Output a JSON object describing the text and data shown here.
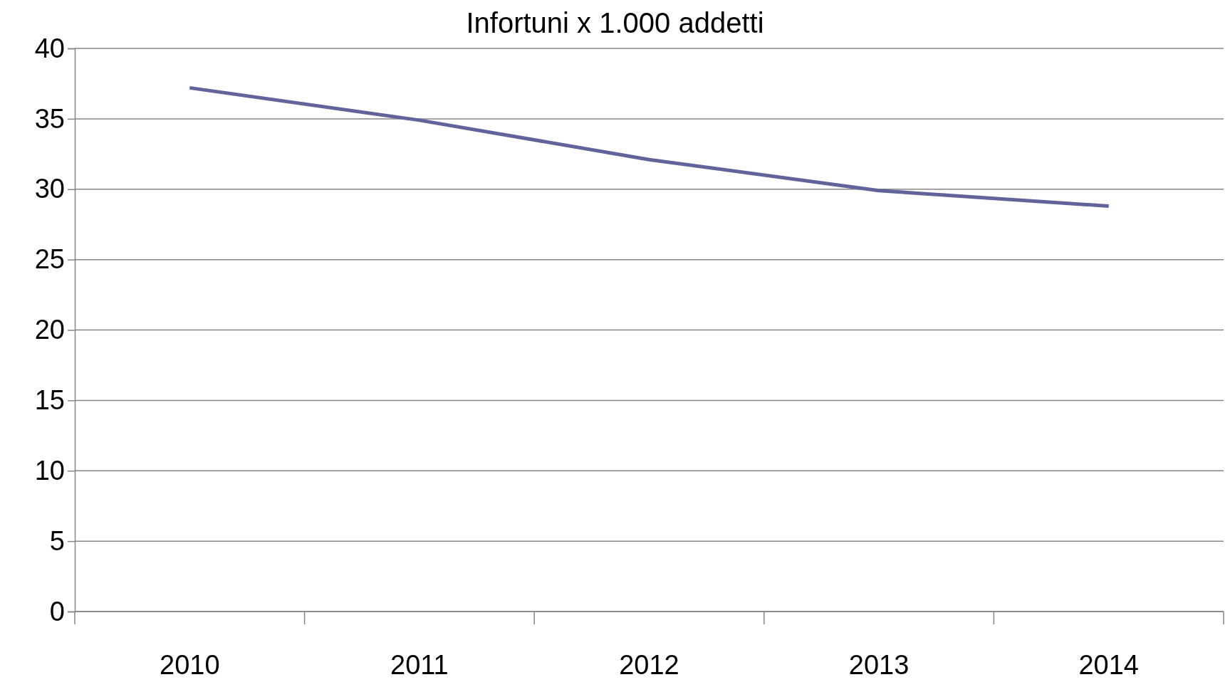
{
  "chart_data": {
    "type": "line",
    "title": "Infortuni x 1.000 addetti",
    "categories": [
      "2010",
      "2011",
      "2012",
      "2013",
      "2014"
    ],
    "series": [
      {
        "color": "#63639b",
        "values": [
          37.2,
          34.9,
          32.1,
          29.9,
          28.8
        ]
      }
    ],
    "ylim": [
      0,
      40
    ],
    "yticks": [
      0,
      5,
      10,
      15,
      20,
      25,
      30,
      35,
      40
    ],
    "grid": "y",
    "legend": false,
    "marker": "none",
    "line_style": "solid"
  }
}
